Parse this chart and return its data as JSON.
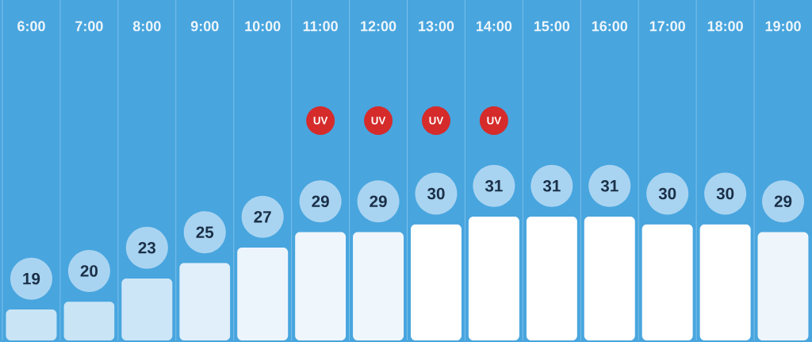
{
  "chart_data": {
    "type": "bar",
    "categories": [
      "6:00",
      "7:00",
      "8:00",
      "9:00",
      "10:00",
      "11:00",
      "12:00",
      "13:00",
      "14:00",
      "15:00",
      "16:00",
      "17:00",
      "18:00",
      "19:00"
    ],
    "values": [
      19,
      20,
      23,
      25,
      27,
      29,
      29,
      30,
      31,
      31,
      31,
      30,
      30,
      29
    ],
    "colors": [
      "#c9e4f5",
      "#c9e4f5",
      "#cde6f7",
      "#e0eff9",
      "#edf5fc",
      "#eff6fc",
      "#f0f7fc",
      "#ffffff",
      "#ffffff",
      "#ffffff",
      "#ffffff",
      "#ffffff",
      "#ffffff",
      "#eef5fb"
    ],
    "ylim": [
      15,
      59
    ],
    "data_labels": true,
    "grid": "x",
    "tick_labels": "x",
    "annotations": [
      {
        "text": "UV",
        "x": "11:00"
      },
      {
        "text": "UV",
        "x": "12:00"
      },
      {
        "text": "UV",
        "x": "13:00"
      },
      {
        "text": "UV",
        "x": "14:00"
      }
    ]
  }
}
